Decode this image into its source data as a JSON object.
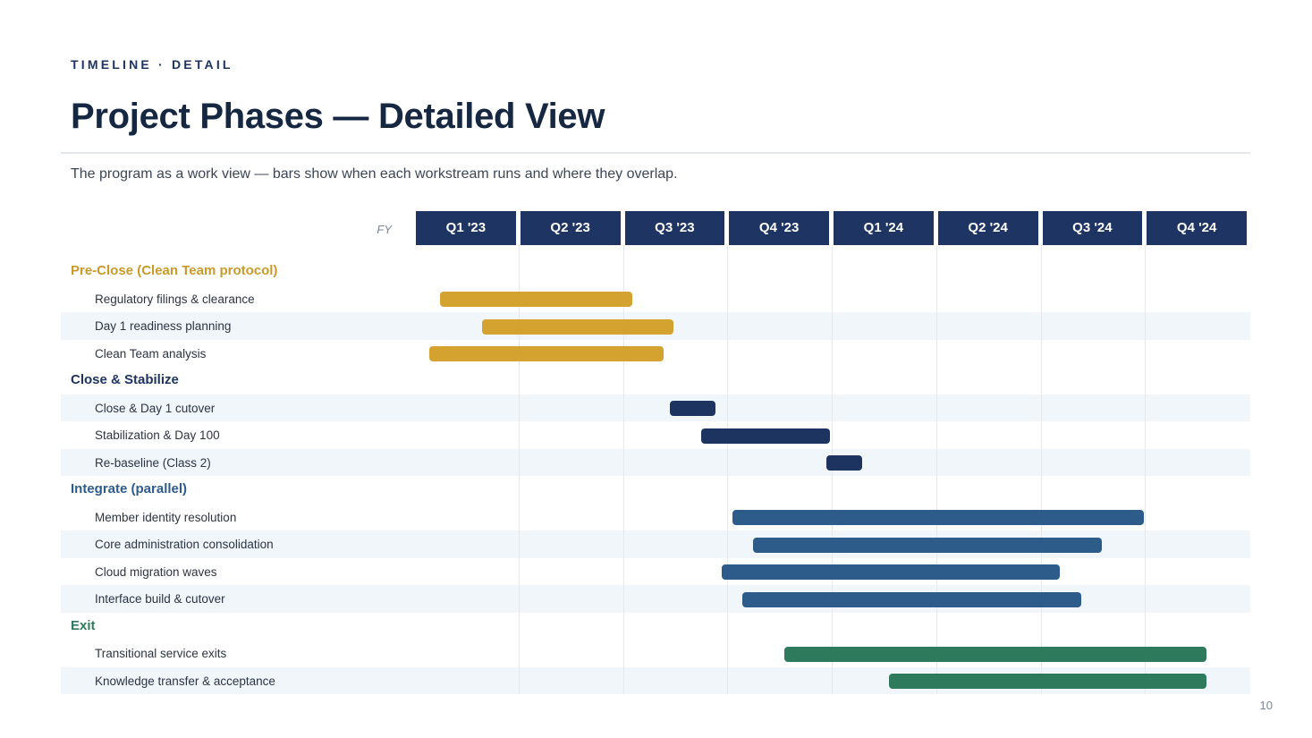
{
  "header": {
    "eyebrow": "TIMELINE · DETAIL",
    "title": "Project Phases — Detailed View",
    "subtitle": "The program as a work view — bars show when each workstream runs and where they overlap."
  },
  "footer": {
    "page_number": "10"
  },
  "chart_data": {
    "type": "gantt",
    "period_label": "FY",
    "periods": [
      "Q1 '23",
      "Q2 '23",
      "Q3 '23",
      "Q4 '23",
      "Q1 '24",
      "Q2 '24",
      "Q3 '24",
      "Q4 '24"
    ],
    "grid": true,
    "groups": [
      {
        "name": "Pre-Close (Clean Team protocol)",
        "color": "#d4a32f",
        "tasks": [
          {
            "name": "Regulatory filings & clearance",
            "start": 0.23,
            "end": 2.07
          },
          {
            "name": "Day 1 readiness planning",
            "start": 0.63,
            "end": 2.47
          },
          {
            "name": "Clean Team analysis",
            "start": 0.13,
            "end": 2.37
          }
        ]
      },
      {
        "name": "Close & Stabilize",
        "color": "#1d3461",
        "tasks": [
          {
            "name": "Close & Day 1 cutover",
            "start": 2.43,
            "end": 2.87
          },
          {
            "name": "Stabilization & Day 100",
            "start": 2.73,
            "end": 3.97
          },
          {
            "name": "Re-baseline (Class 2)",
            "start": 3.93,
            "end": 4.27
          }
        ]
      },
      {
        "name": "Integrate (parallel)",
        "color": "#2d5b8a",
        "tasks": [
          {
            "name": "Member identity resolution",
            "start": 3.03,
            "end": 6.97
          },
          {
            "name": "Core administration consolidation",
            "start": 3.23,
            "end": 6.57
          },
          {
            "name": "Cloud migration waves",
            "start": 2.93,
            "end": 6.17
          },
          {
            "name": "Interface build & cutover",
            "start": 3.13,
            "end": 6.37
          }
        ]
      },
      {
        "name": "Exit",
        "color": "#2e7a5c",
        "tasks": [
          {
            "name": "Transitional service exits",
            "start": 3.53,
            "end": 7.57
          },
          {
            "name": "Knowledge transfer & acceptance",
            "start": 4.53,
            "end": 7.57
          }
        ]
      }
    ]
  }
}
